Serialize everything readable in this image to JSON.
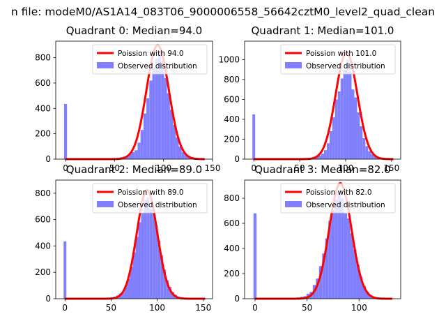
{
  "figure": {
    "suptitle": "n file: modeM0/AS1A14_083T06_9000006558_56642cztM0_level2_quad_clean"
  },
  "colors": {
    "bar": "#8080ff",
    "curve": "#ff0000",
    "axis": "#000000",
    "legend_border": "#cccccc"
  },
  "chart_data": [
    {
      "type": "histogram",
      "title": "Quadrant 0: Median=94.0",
      "median": 94.0,
      "xlim": [
        -10,
        150
      ],
      "ylim": [
        0,
        930
      ],
      "xticks": [
        0,
        50,
        100,
        150
      ],
      "yticks": [
        0,
        200,
        400,
        600,
        800
      ],
      "bin_width": 3,
      "legend": {
        "curve_label": "Poission with 94.0",
        "bar_label": "Observed distribution",
        "position": "upper right"
      },
      "bins": [
        {
          "x": 0,
          "count": 435
        },
        {
          "x": 51,
          "count": 5
        },
        {
          "x": 54,
          "count": 10
        },
        {
          "x": 57,
          "count": 15
        },
        {
          "x": 60,
          "count": 20
        },
        {
          "x": 63,
          "count": 25
        },
        {
          "x": 66,
          "count": 40
        },
        {
          "x": 69,
          "count": 55
        },
        {
          "x": 72,
          "count": 70
        },
        {
          "x": 75,
          "count": 130
        },
        {
          "x": 78,
          "count": 230
        },
        {
          "x": 81,
          "count": 360
        },
        {
          "x": 84,
          "count": 480
        },
        {
          "x": 87,
          "count": 620
        },
        {
          "x": 90,
          "count": 720
        },
        {
          "x": 93,
          "count": 790
        },
        {
          "x": 96,
          "count": 840
        },
        {
          "x": 99,
          "count": 770
        },
        {
          "x": 102,
          "count": 640
        },
        {
          "x": 105,
          "count": 520
        },
        {
          "x": 108,
          "count": 390
        },
        {
          "x": 111,
          "count": 270
        },
        {
          "x": 114,
          "count": 170
        },
        {
          "x": 117,
          "count": 100
        },
        {
          "x": 120,
          "count": 55
        },
        {
          "x": 123,
          "count": 30
        },
        {
          "x": 126,
          "count": 15
        },
        {
          "x": 129,
          "count": 8
        },
        {
          "x": 132,
          "count": 5
        }
      ]
    },
    {
      "type": "histogram",
      "title": "Quadrant 1: Median=101.0",
      "median": 101.0,
      "xlim": [
        -10,
        160
      ],
      "ylim": [
        0,
        1185
      ],
      "xticks": [
        0,
        50,
        100,
        150
      ],
      "yticks": [
        0,
        200,
        400,
        600,
        800,
        1000
      ],
      "bin_width": 3,
      "legend": {
        "curve_label": "Poission with 101.0",
        "bar_label": "Observed distribution",
        "position": "upper right"
      },
      "bins": [
        {
          "x": 0,
          "count": 450
        },
        {
          "x": 60,
          "count": 5
        },
        {
          "x": 63,
          "count": 10
        },
        {
          "x": 66,
          "count": 15
        },
        {
          "x": 69,
          "count": 25
        },
        {
          "x": 72,
          "count": 35
        },
        {
          "x": 75,
          "count": 55
        },
        {
          "x": 78,
          "count": 90
        },
        {
          "x": 81,
          "count": 160
        },
        {
          "x": 84,
          "count": 280
        },
        {
          "x": 87,
          "count": 420
        },
        {
          "x": 90,
          "count": 600
        },
        {
          "x": 93,
          "count": 680
        },
        {
          "x": 96,
          "count": 810
        },
        {
          "x": 99,
          "count": 900
        },
        {
          "x": 102,
          "count": 1000
        },
        {
          "x": 105,
          "count": 880
        },
        {
          "x": 108,
          "count": 700
        },
        {
          "x": 111,
          "count": 620
        },
        {
          "x": 114,
          "count": 470
        },
        {
          "x": 117,
          "count": 330
        },
        {
          "x": 120,
          "count": 210
        },
        {
          "x": 123,
          "count": 130
        },
        {
          "x": 126,
          "count": 80
        },
        {
          "x": 129,
          "count": 50
        },
        {
          "x": 132,
          "count": 30
        },
        {
          "x": 135,
          "count": 20
        },
        {
          "x": 138,
          "count": 10
        },
        {
          "x": 141,
          "count": 5
        }
      ]
    },
    {
      "type": "histogram",
      "title": "Quadrant 2: Median=89.0",
      "median": 89.0,
      "xlim": [
        -10,
        160
      ],
      "ylim": [
        0,
        900
      ],
      "xticks": [
        0,
        50,
        100,
        150
      ],
      "yticks": [
        0,
        200,
        400,
        600,
        800
      ],
      "bin_width": 3,
      "legend": {
        "curve_label": "Poission with 89.0",
        "bar_label": "Observed distribution",
        "position": "upper right"
      },
      "bins": [
        {
          "x": 0,
          "count": 435
        },
        {
          "x": 48,
          "count": 5
        },
        {
          "x": 51,
          "count": 10
        },
        {
          "x": 54,
          "count": 15
        },
        {
          "x": 57,
          "count": 25
        },
        {
          "x": 60,
          "count": 40
        },
        {
          "x": 63,
          "count": 50
        },
        {
          "x": 66,
          "count": 100
        },
        {
          "x": 69,
          "count": 150
        },
        {
          "x": 72,
          "count": 240
        },
        {
          "x": 75,
          "count": 350
        },
        {
          "x": 78,
          "count": 470
        },
        {
          "x": 81,
          "count": 580
        },
        {
          "x": 84,
          "count": 650
        },
        {
          "x": 87,
          "count": 750
        },
        {
          "x": 90,
          "count": 770
        },
        {
          "x": 93,
          "count": 680
        },
        {
          "x": 96,
          "count": 650
        },
        {
          "x": 99,
          "count": 560
        },
        {
          "x": 102,
          "count": 440
        },
        {
          "x": 105,
          "count": 330
        },
        {
          "x": 108,
          "count": 220
        },
        {
          "x": 111,
          "count": 140
        },
        {
          "x": 114,
          "count": 90
        },
        {
          "x": 117,
          "count": 50
        },
        {
          "x": 120,
          "count": 30
        },
        {
          "x": 123,
          "count": 15
        },
        {
          "x": 126,
          "count": 8
        },
        {
          "x": 129,
          "count": 5
        }
      ]
    },
    {
      "type": "histogram",
      "title": "Quadrant 3: Median=82.0",
      "median": 82.0,
      "xlim": [
        -10,
        140
      ],
      "ylim": [
        0,
        945
      ],
      "xticks": [
        0,
        50,
        100
      ],
      "yticks": [
        0,
        200,
        400,
        600,
        800
      ],
      "bin_width": 3,
      "legend": {
        "curve_label": "Poission with 82.0",
        "bar_label": "Observed distribution",
        "position": "upper right"
      },
      "bins": [
        {
          "x": 0,
          "count": 680
        },
        {
          "x": 39,
          "count": 5
        },
        {
          "x": 42,
          "count": 10
        },
        {
          "x": 45,
          "count": 15
        },
        {
          "x": 48,
          "count": 20
        },
        {
          "x": 51,
          "count": 40
        },
        {
          "x": 54,
          "count": 55
        },
        {
          "x": 57,
          "count": 110
        },
        {
          "x": 60,
          "count": 160
        },
        {
          "x": 63,
          "count": 260
        },
        {
          "x": 66,
          "count": 360
        },
        {
          "x": 69,
          "count": 480
        },
        {
          "x": 72,
          "count": 620
        },
        {
          "x": 75,
          "count": 700
        },
        {
          "x": 78,
          "count": 790
        },
        {
          "x": 81,
          "count": 860
        },
        {
          "x": 84,
          "count": 800
        },
        {
          "x": 87,
          "count": 680
        },
        {
          "x": 90,
          "count": 640
        },
        {
          "x": 93,
          "count": 520
        },
        {
          "x": 96,
          "count": 390
        },
        {
          "x": 99,
          "count": 270
        },
        {
          "x": 102,
          "count": 170
        },
        {
          "x": 105,
          "count": 100
        },
        {
          "x": 108,
          "count": 55
        },
        {
          "x": 111,
          "count": 30
        },
        {
          "x": 114,
          "count": 15
        },
        {
          "x": 117,
          "count": 8
        },
        {
          "x": 120,
          "count": 5
        }
      ]
    }
  ]
}
